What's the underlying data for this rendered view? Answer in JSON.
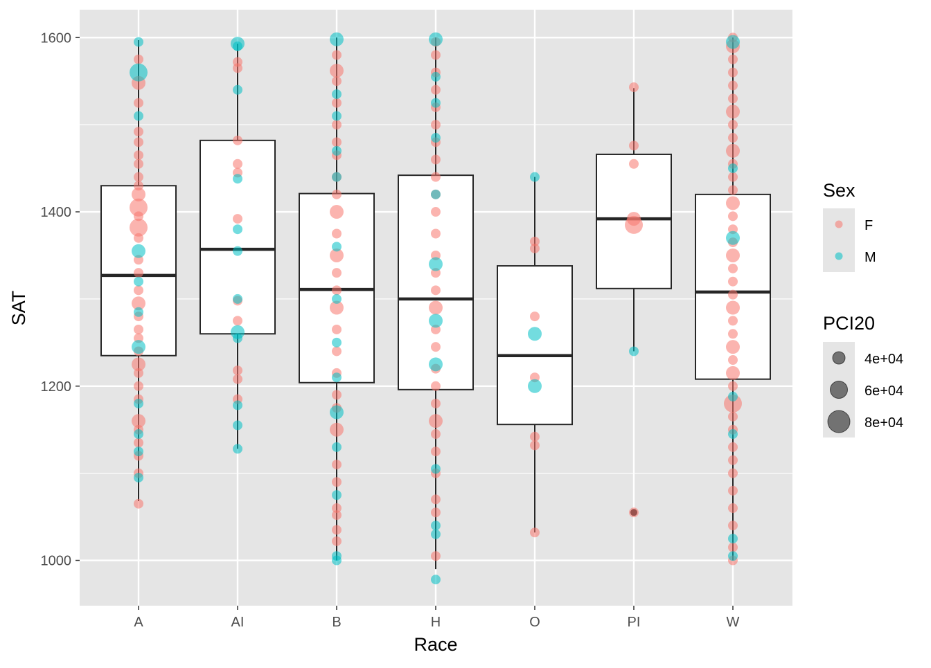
{
  "chart_data": {
    "type": "boxplot",
    "xlabel": "Race",
    "ylabel": "SAT",
    "categories": [
      "A",
      "AI",
      "B",
      "H",
      "O",
      "PI",
      "W"
    ],
    "ylim": [
      948,
      1632
    ],
    "y_ticks": [
      1000,
      1200,
      1400,
      1600
    ],
    "y_tick_labels": [
      "1000",
      "1200",
      "1400",
      "1600"
    ],
    "grid": true,
    "boxes": [
      {
        "category": "A",
        "min": 1068,
        "q1": 1235,
        "median": 1327,
        "q3": 1430,
        "max": 1597
      },
      {
        "category": "AI",
        "min": 1128,
        "q1": 1260,
        "median": 1357,
        "q3": 1482,
        "max": 1593
      },
      {
        "category": "B",
        "min": 1000,
        "q1": 1204,
        "median": 1311,
        "q3": 1421,
        "max": 1600
      },
      {
        "category": "H",
        "min": 990,
        "q1": 1196,
        "median": 1300,
        "q3": 1442,
        "max": 1600
      },
      {
        "category": "O",
        "min": 1032,
        "q1": 1156,
        "median": 1235,
        "q3": 1338,
        "max": 1440
      },
      {
        "category": "PI",
        "min": 1240,
        "q1": 1312,
        "median": 1392,
        "q3": 1466,
        "max": 1542
      },
      {
        "category": "W",
        "min": 1000,
        "q1": 1208,
        "median": 1308,
        "q3": 1420,
        "max": 1600
      }
    ],
    "outliers": [
      {
        "category": "PI",
        "value": 1055
      }
    ],
    "series": [
      {
        "name": "F",
        "color": "#F8766D"
      },
      {
        "name": "M",
        "color": "#00BFC4"
      }
    ],
    "points": {
      "A": {
        "F": [
          [
            1065,
            40000
          ],
          [
            1100,
            40000
          ],
          [
            1120,
            40000
          ],
          [
            1135,
            40000
          ],
          [
            1150,
            40000
          ],
          [
            1160,
            60000
          ],
          [
            1185,
            40000
          ],
          [
            1200,
            40000
          ],
          [
            1215,
            40000
          ],
          [
            1225,
            60000
          ],
          [
            1240,
            40000
          ],
          [
            1255,
            40000
          ],
          [
            1265,
            40000
          ],
          [
            1280,
            40000
          ],
          [
            1295,
            60000
          ],
          [
            1310,
            40000
          ],
          [
            1330,
            40000
          ],
          [
            1345,
            40000
          ],
          [
            1370,
            40000
          ],
          [
            1382,
            80000
          ],
          [
            1395,
            40000
          ],
          [
            1405,
            80000
          ],
          [
            1420,
            60000
          ],
          [
            1430,
            40000
          ],
          [
            1440,
            40000
          ],
          [
            1455,
            40000
          ],
          [
            1465,
            40000
          ],
          [
            1480,
            40000
          ],
          [
            1492,
            40000
          ],
          [
            1525,
            40000
          ],
          [
            1548,
            60000
          ],
          [
            1575,
            40000
          ]
        ],
        "M": [
          [
            1095,
            40000
          ],
          [
            1125,
            40000
          ],
          [
            1145,
            40000
          ],
          [
            1180,
            40000
          ],
          [
            1245,
            60000
          ],
          [
            1285,
            40000
          ],
          [
            1320,
            40000
          ],
          [
            1355,
            60000
          ],
          [
            1510,
            40000
          ],
          [
            1560,
            80000
          ],
          [
            1595,
            40000
          ]
        ]
      },
      "AI": {
        "F": [
          [
            1185,
            40000
          ],
          [
            1208,
            40000
          ],
          [
            1218,
            40000
          ],
          [
            1275,
            40000
          ],
          [
            1298,
            40000
          ],
          [
            1392,
            40000
          ],
          [
            1445,
            40000
          ],
          [
            1455,
            40000
          ],
          [
            1482,
            40000
          ],
          [
            1565,
            40000
          ],
          [
            1572,
            40000
          ]
        ],
        "M": [
          [
            1128,
            40000
          ],
          [
            1155,
            40000
          ],
          [
            1178,
            40000
          ],
          [
            1255,
            40000
          ],
          [
            1262,
            60000
          ],
          [
            1300,
            40000
          ],
          [
            1355,
            40000
          ],
          [
            1380,
            40000
          ],
          [
            1438,
            40000
          ],
          [
            1540,
            40000
          ],
          [
            1590,
            40000
          ],
          [
            1593,
            60000
          ]
        ]
      },
      "B": {
        "F": [
          [
            1022,
            40000
          ],
          [
            1035,
            40000
          ],
          [
            1052,
            40000
          ],
          [
            1060,
            40000
          ],
          [
            1090,
            40000
          ],
          [
            1110,
            40000
          ],
          [
            1150,
            60000
          ],
          [
            1175,
            40000
          ],
          [
            1190,
            40000
          ],
          [
            1215,
            40000
          ],
          [
            1240,
            40000
          ],
          [
            1265,
            40000
          ],
          [
            1290,
            60000
          ],
          [
            1310,
            40000
          ],
          [
            1330,
            40000
          ],
          [
            1350,
            60000
          ],
          [
            1375,
            40000
          ],
          [
            1400,
            60000
          ],
          [
            1420,
            40000
          ],
          [
            1440,
            40000
          ],
          [
            1465,
            40000
          ],
          [
            1480,
            40000
          ],
          [
            1500,
            40000
          ],
          [
            1525,
            40000
          ],
          [
            1550,
            40000
          ],
          [
            1562,
            60000
          ],
          [
            1580,
            40000
          ]
        ],
        "M": [
          [
            1000,
            40000
          ],
          [
            1005,
            40000
          ],
          [
            1075,
            40000
          ],
          [
            1130,
            40000
          ],
          [
            1170,
            60000
          ],
          [
            1210,
            40000
          ],
          [
            1250,
            40000
          ],
          [
            1300,
            40000
          ],
          [
            1360,
            40000
          ],
          [
            1440,
            40000
          ],
          [
            1470,
            40000
          ],
          [
            1510,
            40000
          ],
          [
            1535,
            40000
          ],
          [
            1598,
            60000
          ]
        ]
      },
      "H": {
        "F": [
          [
            1005,
            40000
          ],
          [
            1055,
            40000
          ],
          [
            1070,
            40000
          ],
          [
            1100,
            40000
          ],
          [
            1125,
            40000
          ],
          [
            1145,
            40000
          ],
          [
            1160,
            60000
          ],
          [
            1180,
            40000
          ],
          [
            1200,
            40000
          ],
          [
            1220,
            40000
          ],
          [
            1245,
            40000
          ],
          [
            1265,
            40000
          ],
          [
            1290,
            60000
          ],
          [
            1310,
            40000
          ],
          [
            1330,
            40000
          ],
          [
            1350,
            40000
          ],
          [
            1375,
            40000
          ],
          [
            1400,
            40000
          ],
          [
            1420,
            40000
          ],
          [
            1440,
            40000
          ],
          [
            1460,
            40000
          ],
          [
            1480,
            40000
          ],
          [
            1500,
            40000
          ],
          [
            1520,
            40000
          ],
          [
            1540,
            40000
          ],
          [
            1560,
            40000
          ],
          [
            1580,
            40000
          ],
          [
            1595,
            40000
          ]
        ],
        "M": [
          [
            978,
            40000
          ],
          [
            1030,
            40000
          ],
          [
            1040,
            40000
          ],
          [
            1105,
            40000
          ],
          [
            1225,
            60000
          ],
          [
            1275,
            60000
          ],
          [
            1340,
            60000
          ],
          [
            1420,
            40000
          ],
          [
            1485,
            40000
          ],
          [
            1525,
            40000
          ],
          [
            1555,
            40000
          ],
          [
            1598,
            60000
          ]
        ]
      },
      "O": {
        "F": [
          [
            1032,
            40000
          ],
          [
            1132,
            40000
          ],
          [
            1142,
            40000
          ],
          [
            1210,
            40000
          ],
          [
            1280,
            40000
          ],
          [
            1358,
            40000
          ],
          [
            1366,
            40000
          ]
        ],
        "M": [
          [
            1200,
            60000
          ],
          [
            1260,
            60000
          ],
          [
            1440,
            40000
          ]
        ]
      },
      "PI": {
        "F": [
          [
            1055,
            40000
          ],
          [
            1385,
            80000
          ],
          [
            1392,
            60000
          ],
          [
            1455,
            40000
          ],
          [
            1476,
            40000
          ],
          [
            1543,
            40000
          ]
        ],
        "M": [
          [
            1240,
            40000
          ]
        ]
      },
      "W": {
        "F": [
          [
            1000,
            40000
          ],
          [
            1015,
            40000
          ],
          [
            1040,
            40000
          ],
          [
            1060,
            40000
          ],
          [
            1080,
            40000
          ],
          [
            1100,
            40000
          ],
          [
            1115,
            40000
          ],
          [
            1130,
            40000
          ],
          [
            1150,
            40000
          ],
          [
            1165,
            40000
          ],
          [
            1180,
            80000
          ],
          [
            1200,
            40000
          ],
          [
            1215,
            60000
          ],
          [
            1230,
            40000
          ],
          [
            1245,
            60000
          ],
          [
            1260,
            40000
          ],
          [
            1275,
            40000
          ],
          [
            1290,
            60000
          ],
          [
            1305,
            40000
          ],
          [
            1320,
            40000
          ],
          [
            1335,
            40000
          ],
          [
            1350,
            60000
          ],
          [
            1365,
            40000
          ],
          [
            1380,
            40000
          ],
          [
            1395,
            40000
          ],
          [
            1410,
            60000
          ],
          [
            1425,
            40000
          ],
          [
            1440,
            40000
          ],
          [
            1455,
            40000
          ],
          [
            1470,
            60000
          ],
          [
            1485,
            40000
          ],
          [
            1500,
            40000
          ],
          [
            1515,
            60000
          ],
          [
            1530,
            40000
          ],
          [
            1545,
            40000
          ],
          [
            1560,
            40000
          ],
          [
            1575,
            40000
          ],
          [
            1590,
            60000
          ],
          [
            1600,
            40000
          ]
        ],
        "M": [
          [
            1005,
            40000
          ],
          [
            1025,
            40000
          ],
          [
            1145,
            40000
          ],
          [
            1188,
            40000
          ],
          [
            1370,
            60000
          ],
          [
            1450,
            40000
          ],
          [
            1595,
            60000
          ]
        ]
      }
    },
    "legend": {
      "placement": "right",
      "color_title": "Sex",
      "color_items": [
        "F",
        "M"
      ],
      "size_title": "PCI20",
      "size_items": [
        {
          "label": "4e+04",
          "value": 40000
        },
        {
          "label": "6e+04",
          "value": 60000
        },
        {
          "label": "8e+04",
          "value": 80000
        }
      ]
    },
    "colors": {
      "panel_bg": "#E5E5E5",
      "grid": "#FFFFFF",
      "box_fill": "#FFFFFF",
      "box_stroke": "#262626",
      "F": "#F8766D",
      "M": "#00BFC4",
      "axis_text": "#4D4D4D",
      "title_text": "#000000"
    }
  }
}
